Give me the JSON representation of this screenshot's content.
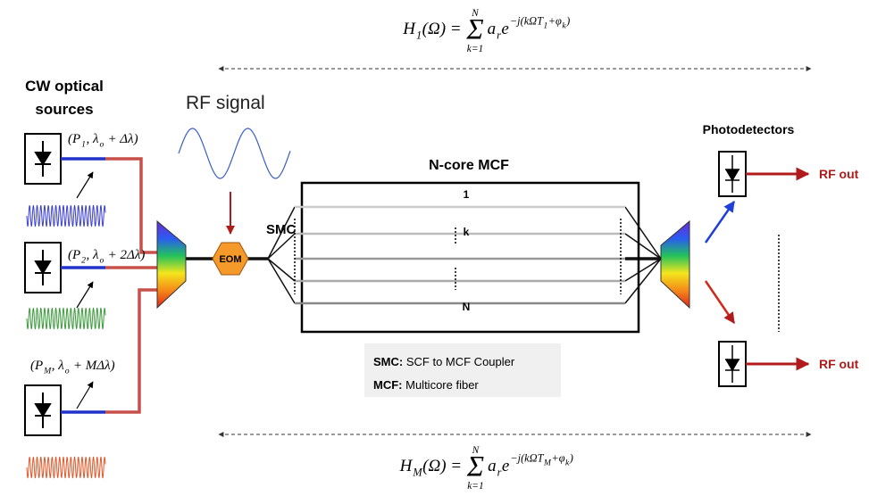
{
  "equations": {
    "top": [
      {
        "text": "H"
      },
      {
        "sub": "1"
      },
      {
        "text": "(Ω) = "
      },
      {
        "sum": "Σ",
        "top": "N",
        "bottom": "k=1"
      },
      {
        "text": "a"
      },
      {
        "sub": "r"
      },
      {
        "text": "e"
      },
      {
        "sup": "−j(kΩT"
      },
      {
        "supsub": "1"
      },
      {
        "sup": "+φ"
      },
      {
        "supsub": "k"
      },
      {
        "sup": ")"
      }
    ],
    "bottom": [
      {
        "text": "H"
      },
      {
        "sub": "M"
      },
      {
        "text": "(Ω) = "
      },
      {
        "sum": "Σ",
        "top": "N",
        "bottom": "k=1"
      },
      {
        "text": "a"
      },
      {
        "sub": "r"
      },
      {
        "text": "e"
      },
      {
        "sup": "−j(kΩT"
      },
      {
        "supsub": "M"
      },
      {
        "sup": "+φ"
      },
      {
        "supsub": "k"
      },
      {
        "sup": ")"
      }
    ]
  },
  "sources": {
    "title": [
      "CW optical",
      "sources"
    ],
    "labels": [
      [
        {
          "text": "(P"
        },
        {
          "sub": "1"
        },
        {
          "text": ", λ"
        },
        {
          "sub": "o"
        },
        {
          "text": " + Δλ)"
        }
      ],
      [
        {
          "text": "(P"
        },
        {
          "sub": "2"
        },
        {
          "text": ", λ"
        },
        {
          "sub": "o"
        },
        {
          "text": " + 2Δλ)"
        }
      ],
      [
        {
          "text": "(P"
        },
        {
          "sub": "M"
        },
        {
          "text": ", λ"
        },
        {
          "sub": "o"
        },
        {
          "text": " + MΔλ)"
        }
      ]
    ]
  },
  "rf_signal": "RF signal",
  "eom": "EOM",
  "smc": "SMC",
  "mcf": {
    "title": "N-core MCF",
    "cores": [
      "1",
      "k",
      "N"
    ]
  },
  "photodetectors": {
    "title": "Photodetectors",
    "outputs": [
      "RF out",
      "RF out"
    ]
  },
  "legend": [
    {
      "key": "SMC:",
      "text": "SCF to MCF Coupler"
    },
    {
      "key": "MCF:",
      "text": "Multicore fiber"
    }
  ]
}
